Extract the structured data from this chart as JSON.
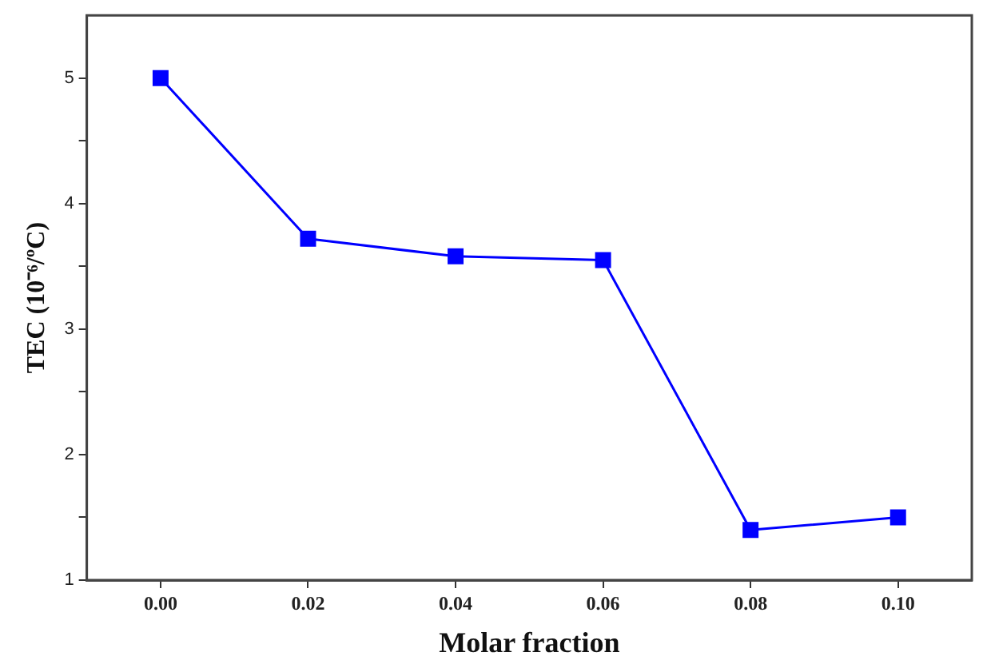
{
  "chart_data": {
    "type": "line",
    "xlabel": "Molar fraction",
    "ylabel": "TEC (10⁻⁶/ºC)",
    "x": [
      0,
      0.02,
      0.04,
      0.06,
      0.08,
      0.1
    ],
    "series": [
      {
        "color": "#0000ff",
        "values": [
          5.0,
          3.72,
          3.58,
          3.55,
          1.4,
          1.5
        ]
      }
    ],
    "xlim": [
      -0.01,
      0.11
    ],
    "xticks": [
      {
        "value": 0,
        "label": "0.00"
      },
      {
        "value": 0.02,
        "label": "0.02"
      },
      {
        "value": 0.04,
        "label": "0.04"
      },
      {
        "value": 0.06,
        "label": "0.06"
      },
      {
        "value": 0.08,
        "label": "0.08"
      },
      {
        "value": 0.1,
        "label": "0.10"
      }
    ],
    "ylim": [
      1,
      5.5
    ],
    "yticks": [
      1,
      {
        "value": 1.5,
        "label": null
      },
      2,
      {
        "value": 2.5,
        "label": null
      },
      3,
      {
        "value": 3.5,
        "label": null
      },
      4,
      {
        "value": 4.5,
        "label": null
      },
      5
    ],
    "grid": false,
    "legend": false,
    "marker": "square",
    "line_style": "solid"
  }
}
